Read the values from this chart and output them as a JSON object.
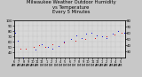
{
  "title": "Milwaukee Weather Outdoor Humidity\nvs Temperature\nEvery 5 Minutes",
  "title_fontsize": 3.8,
  "background_color": "#c8c8c8",
  "plot_bg_color": "#d8d8d8",
  "grid_color": "#b0b0b0",
  "blue_color": "#0000dd",
  "red_color": "#dd0000",
  "ylim_left": [
    30,
    100
  ],
  "ylim_right": [
    20,
    80
  ],
  "y_ticks_left": [
    40,
    50,
    60,
    70,
    80,
    90,
    100
  ],
  "y_ticks_right": [
    30,
    40,
    50,
    60,
    70,
    80
  ],
  "tick_fontsize": 2.8,
  "marker_size": 2.5,
  "num_points": 288,
  "blue_data_x": [
    0,
    2,
    10,
    22,
    38,
    55,
    72,
    88,
    100,
    115,
    130,
    148,
    162,
    175,
    188,
    200,
    215,
    228,
    240,
    255,
    270,
    285
  ],
  "blue_data_y": [
    82,
    78,
    62,
    30,
    28,
    45,
    55,
    50,
    48,
    52,
    60,
    65,
    72,
    68,
    75,
    78,
    72,
    70,
    68,
    75,
    80,
    78
  ],
  "red_data_x": [
    15,
    30,
    50,
    65,
    80,
    100,
    130,
    160,
    185,
    210,
    240,
    260,
    280
  ],
  "red_data_y": [
    35,
    35,
    38,
    40,
    38,
    42,
    45,
    48,
    50,
    52,
    55,
    58,
    60
  ]
}
